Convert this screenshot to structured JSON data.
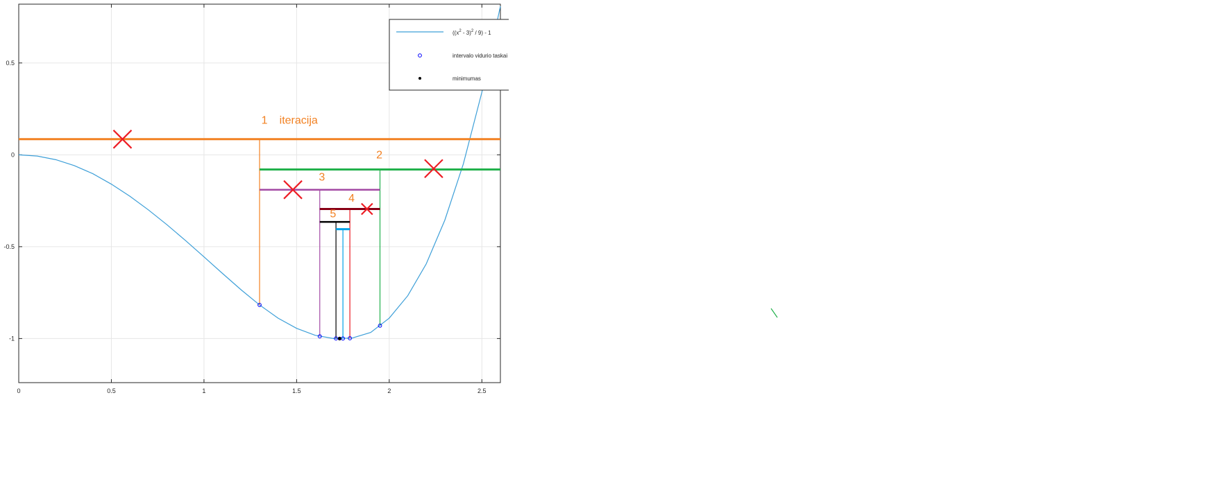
{
  "chart_data": {
    "type": "line",
    "xlim": [
      0,
      2.6
    ],
    "ylim": [
      -1.24,
      0.82
    ],
    "xticks": [
      0,
      0.5,
      1,
      1.5,
      2,
      2.5
    ],
    "yticks": [
      0.5,
      0,
      -0.5,
      -1
    ],
    "xtick_labels": [
      "0",
      "0.5",
      "1",
      "1.5",
      "2",
      "2.5"
    ],
    "ytick_labels": [
      "0.5",
      "0",
      "-0.5",
      "-1"
    ],
    "grid": true,
    "legend_placement": "top-right",
    "legend": [
      {
        "label_main": "((x",
        "sup1": "2",
        "label_mid": " - 3)",
        "sup2": "2",
        "label_end": " / 9) - 1",
        "marker": "line",
        "color": "#3d9fd8"
      },
      {
        "label": "intervalo vidurio taskai",
        "marker": "circle",
        "color": "#0000ff"
      },
      {
        "label": "minimumas",
        "marker": "dot",
        "color": "#000000"
      }
    ],
    "series": [
      {
        "name": "((x^2 - 3)^2 / 9) - 1",
        "x": [
          0,
          0.1,
          0.2,
          0.3,
          0.4,
          0.5,
          0.6,
          0.7,
          0.8,
          0.9,
          1.0,
          1.1,
          1.2,
          1.3,
          1.4,
          1.5,
          1.6,
          1.7,
          1.8,
          1.9,
          2.0,
          2.1,
          2.2,
          2.3,
          2.4,
          2.5,
          2.6
        ],
        "y": [
          0,
          -0.0067,
          -0.0265,
          -0.0588,
          -0.1028,
          -0.1597,
          -0.2256,
          -0.2998,
          -0.3806,
          -0.4662,
          -0.5556,
          -0.6458,
          -0.7344,
          -0.8172,
          -0.8893,
          -0.9444,
          -0.9822,
          -0.9999,
          -0.9973,
          -0.9667,
          -0.8889,
          -0.7668,
          -0.5931,
          -0.3557,
          -0.0495,
          0.3403,
          0.8087
        ],
        "color": "#3d9fd8"
      }
    ],
    "midpoints": {
      "x": [
        1.3,
        1.625,
        1.95,
        1.7125,
        1.7875,
        1.75
      ],
      "y": [
        -0.8172,
        -0.988,
        -0.9298,
        -0.9993,
        -0.9983,
        -0.9998
      ],
      "color": "#0000ff"
    },
    "minimum": {
      "x": 1.7321,
      "y": -1.0,
      "color": "#000000"
    },
    "annotations": {
      "iteration_word": "iteracija",
      "labels": [
        {
          "text": "1",
          "x": 1.31,
          "y": 0.17
        },
        {
          "text": "2",
          "x": 1.93,
          "y": -0.02
        },
        {
          "text": "3",
          "x": 1.62,
          "y": -0.14
        },
        {
          "text": "4",
          "x": 1.78,
          "y": -0.255
        },
        {
          "text": "5",
          "x": 1.68,
          "y": -0.34
        }
      ],
      "label_color": "#f28122",
      "intervals": [
        {
          "x1": 0,
          "x2": 2.6,
          "y": 0.085,
          "color": "#f28122",
          "width": 3
        },
        {
          "x1": 1.3,
          "x2": 2.6,
          "y": -0.08,
          "color": "#22b14c",
          "width": 3
        },
        {
          "x1": 1.3,
          "x2": 1.95,
          "y": -0.19,
          "color": "#a349a4",
          "width": 2.5
        },
        {
          "x1": 1.625,
          "x2": 1.95,
          "y": -0.295,
          "color": "#880015",
          "width": 3
        },
        {
          "x1": 1.625,
          "x2": 1.7875,
          "y": -0.365,
          "color": "#000000",
          "width": 2.5
        },
        {
          "x1": 1.7125,
          "x2": 1.7875,
          "y": -0.405,
          "color": "#00a2e8",
          "width": 3
        }
      ],
      "drop_lines": [
        {
          "x": 1.3,
          "y_top": 0.085,
          "y_bottom": -0.8172,
          "color": "#f28122"
        },
        {
          "x": 1.95,
          "y_top": -0.08,
          "y_bottom": -0.9298,
          "color": "#22b14c"
        },
        {
          "x": 1.625,
          "y_top": -0.19,
          "y_bottom": -0.988,
          "color": "#a349a4"
        },
        {
          "x": 1.7875,
          "y_top": -0.295,
          "y_bottom": -0.9983,
          "color": "#ed1c24"
        },
        {
          "x": 1.7125,
          "y_top": -0.365,
          "y_bottom": -0.9993,
          "color": "#000000"
        },
        {
          "x": 1.75,
          "y_top": -0.405,
          "y_bottom": -0.9998,
          "color": "#00a2e8"
        }
      ],
      "crosses": [
        {
          "x": 0.56,
          "y": 0.085,
          "size": "large"
        },
        {
          "x": 2.24,
          "y": -0.075,
          "size": "large"
        },
        {
          "x": 1.48,
          "y": -0.19,
          "size": "large"
        },
        {
          "x": 1.88,
          "y": -0.295,
          "size": "small"
        }
      ],
      "cross_color": "#ed1c24"
    }
  }
}
